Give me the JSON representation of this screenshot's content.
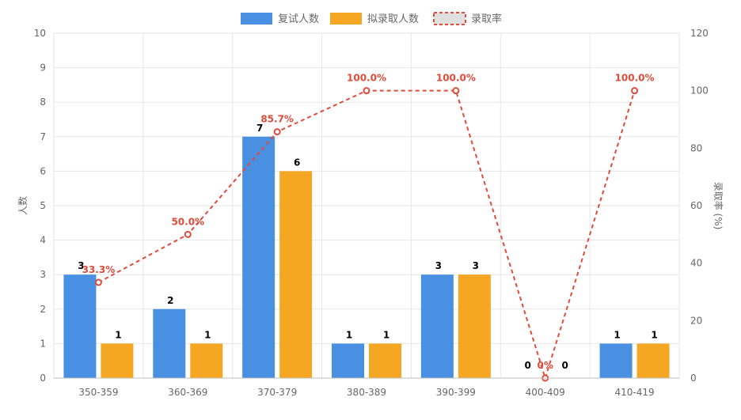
{
  "chart_data": {
    "type": "bar",
    "categories": [
      "350-359",
      "360-369",
      "370-379",
      "380-389",
      "390-399",
      "400-409",
      "410-419"
    ],
    "series": [
      {
        "name": "复试人数",
        "type": "bar",
        "axis": "left",
        "color": "#4a90e2",
        "values": [
          3,
          2,
          7,
          1,
          3,
          0,
          1
        ],
        "labels": [
          "3",
          "2",
          "7",
          "1",
          "3",
          "0",
          "1"
        ]
      },
      {
        "name": "拟录取人数",
        "type": "bar",
        "axis": "left",
        "color": "#f5a623",
        "values": [
          1,
          1,
          6,
          1,
          3,
          0,
          1
        ],
        "labels": [
          "1",
          "1",
          "6",
          "1",
          "3",
          "0",
          "1"
        ]
      },
      {
        "name": "录取率",
        "type": "line",
        "style": "dashed",
        "axis": "right",
        "color": "#e04b3a",
        "values": [
          33.3,
          50.0,
          85.7,
          100.0,
          100.0,
          0,
          100.0
        ],
        "labels": [
          "33.3%",
          "50.0%",
          "85.7%",
          "100.0%",
          "100.0%",
          "0%",
          "100.0%"
        ]
      }
    ],
    "ylabel": "人数",
    "y2label": "录取率 (%)",
    "ylim": [
      0,
      10
    ],
    "y2lim": [
      0,
      120
    ],
    "yticks": [
      "0",
      "1",
      "2",
      "3",
      "4",
      "5",
      "6",
      "7",
      "8",
      "9",
      "10"
    ],
    "y2ticks": [
      "0",
      "20",
      "40",
      "60",
      "80",
      "100",
      "120"
    ],
    "grid": true,
    "legend_position": "top-center"
  }
}
